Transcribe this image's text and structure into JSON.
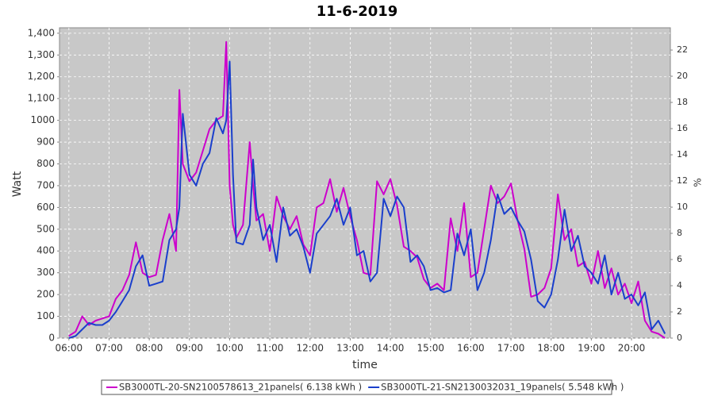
{
  "chart_data": {
    "type": "line",
    "title": "11-6-2019",
    "x_label": "time",
    "y_label": "Watt",
    "y2_label": "%",
    "x": [
      "06:00",
      "06:10",
      "06:20",
      "06:30",
      "06:40",
      "06:50",
      "07:00",
      "07:10",
      "07:20",
      "07:30",
      "07:40",
      "07:50",
      "08:00",
      "08:10",
      "08:20",
      "08:30",
      "08:40",
      "08:45",
      "08:50",
      "09:00",
      "09:10",
      "09:20",
      "09:30",
      "09:40",
      "09:50",
      "09:55",
      "10:00",
      "10:05",
      "10:10",
      "10:20",
      "10:30",
      "10:35",
      "10:40",
      "10:50",
      "11:00",
      "11:10",
      "11:20",
      "11:30",
      "11:40",
      "11:50",
      "12:00",
      "12:10",
      "12:20",
      "12:30",
      "12:40",
      "12:50",
      "13:00",
      "13:10",
      "13:20",
      "13:30",
      "13:40",
      "13:50",
      "14:00",
      "14:10",
      "14:20",
      "14:30",
      "14:40",
      "14:50",
      "15:00",
      "15:10",
      "15:20",
      "15:30",
      "15:40",
      "15:50",
      "16:00",
      "16:10",
      "16:20",
      "16:30",
      "16:40",
      "16:50",
      "17:00",
      "17:10",
      "17:20",
      "17:30",
      "17:40",
      "17:50",
      "18:00",
      "18:10",
      "18:20",
      "18:30",
      "18:40",
      "18:50",
      "19:00",
      "19:10",
      "19:20",
      "19:30",
      "19:40",
      "19:50",
      "20:00",
      "20:10",
      "20:20",
      "20:30",
      "20:40",
      "20:50"
    ],
    "series": [
      {
        "name": "SB3000TL-20-SN2100578613_21panels( 6.138 kWh )",
        "color": "#cc00cc",
        "values": [
          10,
          30,
          100,
          60,
          80,
          90,
          100,
          180,
          220,
          290,
          440,
          300,
          280,
          290,
          450,
          570,
          400,
          1140,
          800,
          720,
          760,
          860,
          960,
          1000,
          1020,
          1360,
          700,
          520,
          460,
          520,
          900,
          700,
          540,
          570,
          400,
          650,
          560,
          500,
          560,
          430,
          380,
          600,
          620,
          730,
          580,
          690,
          560,
          450,
          300,
          290,
          720,
          660,
          730,
          610,
          420,
          400,
          370,
          270,
          230,
          250,
          220,
          550,
          400,
          620,
          280,
          300,
          500,
          700,
          620,
          650,
          710,
          540,
          410,
          190,
          200,
          230,
          320,
          660,
          450,
          500,
          330,
          350,
          250,
          400,
          230,
          320,
          200,
          250,
          160,
          260,
          80,
          30,
          20,
          0
        ]
      },
      {
        "name": "SB3000TL-21-SN2130032031_19panels( 5.548 kWh )",
        "color": "#1a3fcc",
        "values": [
          0,
          10,
          40,
          70,
          60,
          60,
          80,
          120,
          170,
          220,
          330,
          380,
          240,
          250,
          260,
          450,
          500,
          600,
          1030,
          750,
          700,
          800,
          850,
          1010,
          940,
          1000,
          1270,
          750,
          440,
          430,
          520,
          820,
          600,
          450,
          520,
          350,
          600,
          470,
          500,
          420,
          300,
          480,
          520,
          560,
          640,
          520,
          600,
          380,
          400,
          260,
          300,
          640,
          560,
          650,
          600,
          350,
          380,
          330,
          220,
          230,
          210,
          220,
          480,
          380,
          500,
          220,
          300,
          450,
          660,
          570,
          600,
          540,
          490,
          360,
          170,
          140,
          200,
          360,
          590,
          400,
          470,
          330,
          300,
          250,
          380,
          200,
          300,
          180,
          200,
          150,
          210,
          40,
          80,
          20
        ]
      }
    ],
    "xlim": [
      "05:46",
      "20:58"
    ],
    "xticks": [
      "06:00",
      "07:00",
      "08:00",
      "09:00",
      "10:00",
      "11:00",
      "12:00",
      "13:00",
      "14:00",
      "15:00",
      "16:00",
      "17:00",
      "18:00",
      "19:00",
      "20:00"
    ],
    "ylim": [
      0,
      1425
    ],
    "yticks": [
      0,
      100,
      200,
      300,
      400,
      500,
      600,
      700,
      800,
      900,
      1000,
      {
        "value": 1100,
        "label": "1,100"
      },
      {
        "value": 1200,
        "label": "1,200"
      },
      {
        "value": 1300,
        "label": "1,300"
      },
      {
        "value": 1400,
        "label": "1,400"
      }
    ],
    "y2lim": [
      0,
      23.7
    ],
    "y2ticks": [
      0,
      2,
      4,
      6,
      8,
      10,
      12,
      14,
      16,
      18,
      20,
      22
    ],
    "grid": true,
    "legend": "bottom"
  }
}
